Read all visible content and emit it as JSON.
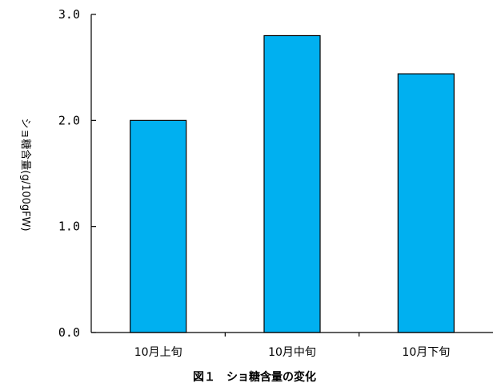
{
  "chart_data": {
    "type": "bar",
    "title": "図１　ショ糖含量の変化",
    "xlabel": "",
    "ylabel": "ショ糖含量(g/100gFW)",
    "categories": [
      "10月上旬",
      "10月中旬",
      "10月下旬"
    ],
    "values": [
      2.0,
      2.8,
      2.44
    ],
    "ylim": [
      0,
      3.0
    ],
    "yticks": [
      "0.0",
      "1.0",
      "2.0",
      "3.0"
    ],
    "grid": false,
    "legend": "none",
    "bar_color": "#00b0f0",
    "bar_edge_color": "#000000"
  }
}
